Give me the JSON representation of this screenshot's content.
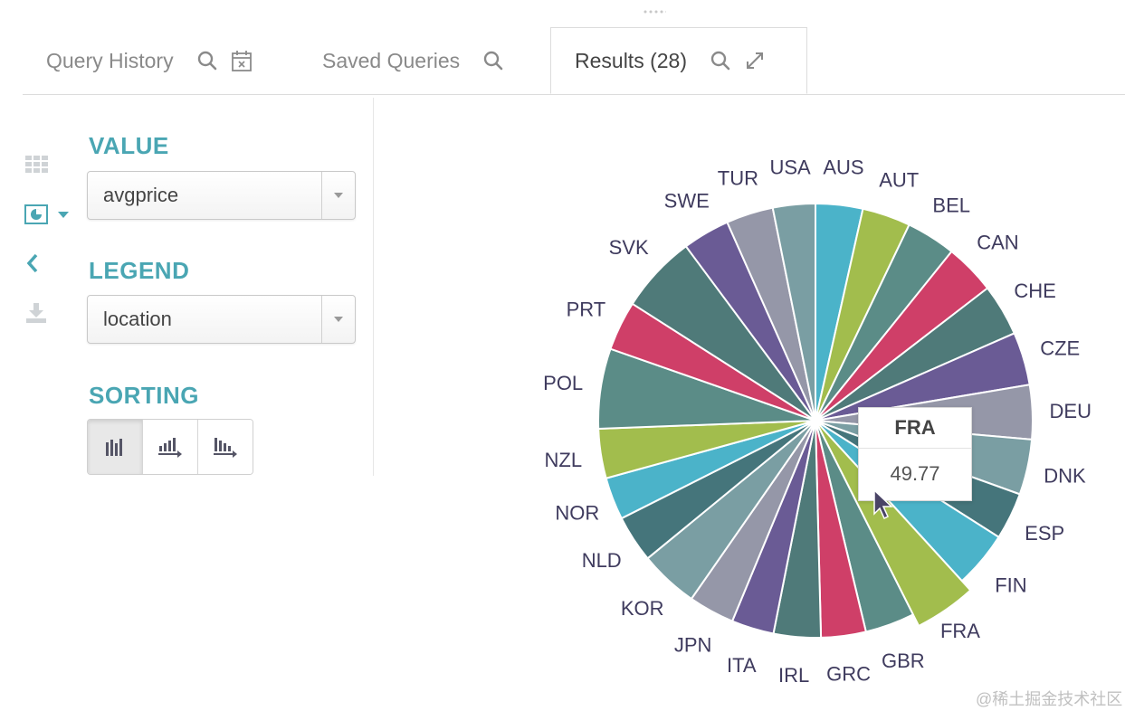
{
  "tabs": [
    {
      "label": "Query History",
      "icons": [
        "search-icon",
        "calendar-clear-icon"
      ],
      "active": false
    },
    {
      "label": "Saved Queries",
      "icons": [
        "search-icon"
      ],
      "active": false
    },
    {
      "label": "Results (28)",
      "icons": [
        "search-icon",
        "expand-icon"
      ],
      "active": true
    }
  ],
  "rail": [
    "grid-icon",
    "pie-chart-icon",
    "collapse-chevron-icon",
    "download-icon"
  ],
  "value": {
    "label": "VALUE",
    "selected": "avgprice"
  },
  "legend": {
    "label": "LEGEND",
    "selected": "location"
  },
  "sorting": {
    "label": "SORTING",
    "options": [
      "sort-default-icon",
      "sort-ascending-icon",
      "sort-descending-icon"
    ],
    "active": 0
  },
  "colors": [
    "#4bb3c9",
    "#a2bd4d",
    "#5b8c87",
    "#cf3f68",
    "#4f7a79",
    "#6a5b95",
    "#9597a8",
    "#7a9ea3",
    "#45757b"
  ],
  "chart_data": {
    "type": "pie",
    "categories": [
      "AUS",
      "AUT",
      "BEL",
      "CAN",
      "CHE",
      "CZE",
      "DEU",
      "DNK",
      "ESP",
      "FIN",
      "FRA",
      "GBR",
      "GRC",
      "IRL",
      "ITA",
      "JPN",
      "KOR",
      "NLD",
      "NOR",
      "NZL",
      "POL",
      "PRT",
      "SVK",
      "SWE",
      "TUR",
      "USA"
    ],
    "values": [
      40,
      41,
      42,
      43,
      44,
      45,
      46,
      47,
      40,
      48,
      49.77,
      42,
      38,
      40,
      36,
      39,
      50,
      40,
      36,
      42,
      68,
      42,
      66,
      40,
      40,
      36
    ],
    "highlighted": "FRA",
    "title": ""
  },
  "tooltip": {
    "title": "FRA",
    "value": "49.77"
  },
  "watermark": "@稀土掘金技术社区"
}
